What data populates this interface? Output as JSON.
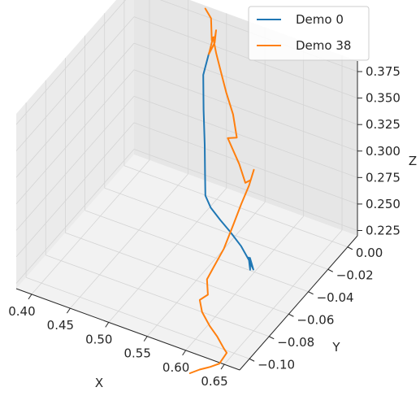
{
  "chart_data": {
    "type": "line",
    "projection": "3d",
    "xlabel": "X",
    "ylabel": "Y",
    "zlabel": "Z",
    "xlim": [
      0.38,
      0.67
    ],
    "ylim": [
      -0.11,
      0.01
    ],
    "zlim": [
      0.22,
      0.385
    ],
    "x_ticks": [
      0.4,
      0.45,
      0.5,
      0.55,
      0.6,
      0.65
    ],
    "x_tick_labels": [
      "0.40",
      "0.45",
      "0.50",
      "0.55",
      "0.60",
      "0.65"
    ],
    "y_ticks": [
      0.0,
      -0.02,
      -0.04,
      -0.06,
      -0.08,
      -0.1
    ],
    "y_tick_labels": [
      "0.00",
      "−0.02",
      "−0.04",
      "−0.06",
      "−0.08",
      "−0.10"
    ],
    "z_ticks": [
      0.225,
      0.25,
      0.275,
      0.3,
      0.325,
      0.35,
      0.375
    ],
    "z_tick_labels": [
      "0.225",
      "0.250",
      "0.275",
      "0.300",
      "0.325",
      "0.350",
      "0.375"
    ],
    "grid": true,
    "legend_position": "top-right",
    "series": [
      {
        "name": "Demo 0",
        "color": "#1f77b4",
        "points": [
          [
            0.485,
            0.004,
            0.35
          ],
          [
            0.48,
            0.002,
            0.33
          ],
          [
            0.483,
            0.0,
            0.3
          ],
          [
            0.487,
            -0.002,
            0.27
          ],
          [
            0.49,
            -0.004,
            0.245
          ],
          [
            0.493,
            -0.006,
            0.228
          ],
          [
            0.505,
            -0.01,
            0.224
          ],
          [
            0.525,
            -0.016,
            0.224
          ],
          [
            0.545,
            -0.022,
            0.225
          ],
          [
            0.57,
            -0.03,
            0.226
          ],
          [
            0.59,
            -0.038,
            0.227
          ],
          [
            0.605,
            -0.045,
            0.229
          ],
          [
            0.598,
            -0.043,
            0.236
          ],
          [
            0.602,
            -0.046,
            0.229
          ],
          [
            0.59,
            -0.038,
            0.229
          ]
        ]
      },
      {
        "name": "Demo 38",
        "color": "#ff7f0e",
        "points": [
          [
            0.475,
            0.008,
            0.385
          ],
          [
            0.48,
            0.01,
            0.375
          ],
          [
            0.486,
            0.006,
            0.36
          ],
          [
            0.493,
            0.004,
            0.368
          ],
          [
            0.498,
            0.001,
            0.378
          ],
          [
            0.5,
            -0.002,
            0.37
          ],
          [
            0.495,
            -0.004,
            0.36
          ],
          [
            0.503,
            -0.006,
            0.38
          ],
          [
            0.512,
            -0.01,
            0.372
          ],
          [
            0.522,
            -0.013,
            0.36
          ],
          [
            0.534,
            -0.017,
            0.348
          ],
          [
            0.548,
            -0.021,
            0.335
          ],
          [
            0.558,
            -0.025,
            0.32
          ],
          [
            0.545,
            -0.024,
            0.315
          ],
          [
            0.565,
            -0.028,
            0.3
          ],
          [
            0.578,
            -0.032,
            0.29
          ],
          [
            0.59,
            -0.036,
            0.3
          ],
          [
            0.598,
            -0.039,
            0.315
          ],
          [
            0.593,
            -0.04,
            0.3
          ],
          [
            0.583,
            -0.04,
            0.28
          ],
          [
            0.575,
            -0.042,
            0.26
          ],
          [
            0.568,
            -0.046,
            0.24
          ],
          [
            0.56,
            -0.05,
            0.225
          ],
          [
            0.555,
            -0.053,
            0.215
          ],
          [
            0.56,
            -0.056,
            0.205
          ],
          [
            0.552,
            -0.058,
            0.2
          ],
          [
            0.56,
            -0.062,
            0.195
          ],
          [
            0.575,
            -0.066,
            0.19
          ],
          [
            0.59,
            -0.07,
            0.188
          ],
          [
            0.605,
            -0.075,
            0.186
          ],
          [
            0.615,
            -0.08,
            0.19
          ],
          [
            0.608,
            -0.082,
            0.18
          ],
          [
            0.6,
            -0.085,
            0.178
          ],
          [
            0.59,
            -0.088,
            0.176
          ],
          [
            0.58,
            -0.09,
            0.172
          ]
        ]
      }
    ]
  }
}
